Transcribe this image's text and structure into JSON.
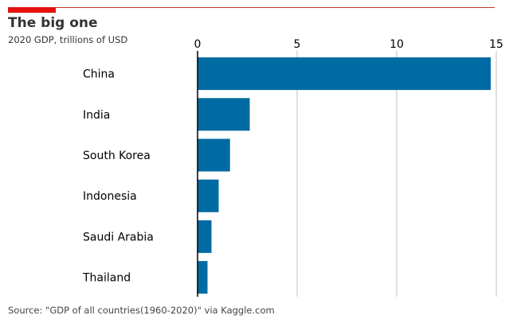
{
  "header": {
    "title": "The big one",
    "subtitle": "2020 GDP, trillions of USD",
    "accent_color": "#e3120b",
    "rule_color": "#c0392b"
  },
  "footer": {
    "source": "Source: \"GDP of all countries(1960-2020)\" via Kaggle.com"
  },
  "chart_data": {
    "type": "bar",
    "orientation": "horizontal",
    "categories": [
      "China",
      "India",
      "South Korea",
      "Indonesia",
      "Saudi Arabia",
      "Thailand"
    ],
    "values": [
      14.72,
      2.62,
      1.63,
      1.06,
      0.7,
      0.5
    ],
    "xlim": [
      0,
      15
    ],
    "xticks": [
      0,
      5,
      10,
      15
    ],
    "x_axis_position": "top",
    "grid": "vertical",
    "bar_color": "#006ba2",
    "grid_color": "#b7c6cb",
    "title": "The big one",
    "subtitle": "2020 GDP, trillions of USD"
  }
}
